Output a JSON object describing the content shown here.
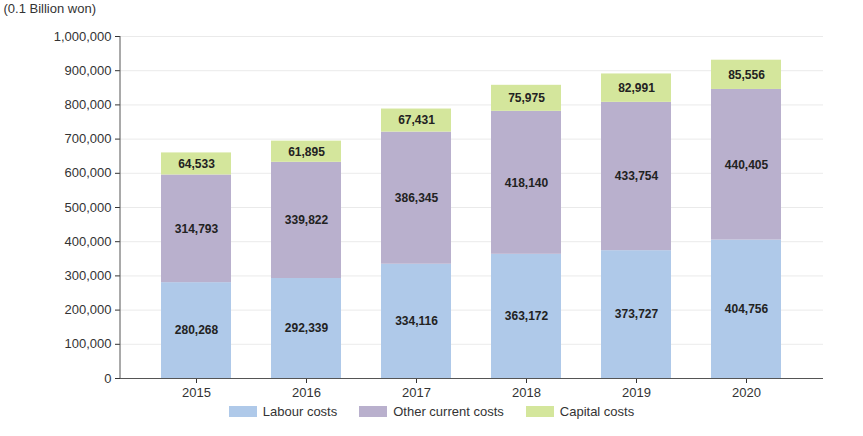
{
  "chart_data": {
    "type": "bar",
    "stacked": true,
    "data_labels": true,
    "grid": true,
    "legend": "bottom",
    "y_label": "(0.1 Billion won)",
    "categories": [
      "2015",
      "2016",
      "2017",
      "2018",
      "2019",
      "2020"
    ],
    "ylim": [
      0,
      1000000
    ],
    "yticks": [
      0,
      {
        "value": 100000,
        "label": "100,000"
      },
      {
        "value": 200000,
        "label": "200,000"
      },
      {
        "value": 300000,
        "label": "300,000"
      },
      {
        "value": 400000,
        "label": "400,000"
      },
      {
        "value": 500000,
        "label": "500,000"
      },
      {
        "value": 600000,
        "label": "600,000"
      },
      {
        "value": 700000,
        "label": "700,000"
      },
      {
        "value": 800000,
        "label": "800,000"
      },
      {
        "value": 900000,
        "label": "900,000"
      },
      {
        "value": 1000000,
        "label": "1,000,000"
      }
    ],
    "series": [
      {
        "name": "Labour costs",
        "color": "#afc9e9",
        "values": [
          280268,
          292339,
          334116,
          363172,
          373727,
          404756
        ],
        "value_labels": [
          "280,268",
          "292,339",
          "334,116",
          "363,172",
          "373,727",
          "404,756"
        ]
      },
      {
        "name": "Other current costs",
        "color": "#b9b0cd",
        "values": [
          314793,
          339822,
          386345,
          418140,
          433754,
          440405
        ],
        "value_labels": [
          "314,793",
          "339,822",
          "386,345",
          "418,140",
          "433,754",
          "440,405"
        ]
      },
      {
        "name": "Capital costs",
        "color": "#d4e69c",
        "values": [
          64533,
          61895,
          67431,
          75975,
          82991,
          85556
        ],
        "value_labels": [
          "64,533",
          "61,895",
          "67,431",
          "75,975",
          "82,991",
          "85,556"
        ]
      }
    ]
  }
}
